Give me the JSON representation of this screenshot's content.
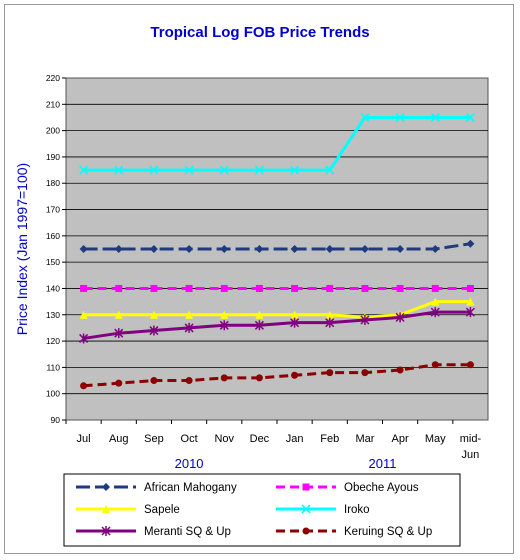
{
  "chart_data": {
    "type": "line",
    "title": "Tropical Log FOB Price Trends",
    "xlabel": "",
    "ylabel": "Price Index (Jan 1997=100)",
    "ylim": [
      90,
      220
    ],
    "yticks": [
      90,
      100,
      110,
      120,
      130,
      140,
      150,
      160,
      170,
      180,
      190,
      200,
      210,
      220
    ],
    "categories": [
      "Jul",
      "Aug",
      "Sep",
      "Oct",
      "Nov",
      "Dec",
      "Jan",
      "Feb",
      "Mar",
      "Apr",
      "May",
      "mid-Jun"
    ],
    "year_labels": [
      {
        "label": "2010",
        "center_index": 3
      },
      {
        "label": "2011",
        "center_index": 8.5
      }
    ],
    "grid": "horizontal",
    "legend_placement": "bottom",
    "series": [
      {
        "name": "African Mahogany",
        "color": "#1f3a80",
        "dash": "long-dash",
        "marker": "diamond",
        "values": [
          155,
          155,
          155,
          155,
          155,
          155,
          155,
          155,
          155,
          155,
          155,
          157
        ]
      },
      {
        "name": "Obeche Ayous",
        "color": "#ff00ff",
        "dash": "dash",
        "marker": "square",
        "values": [
          140,
          140,
          140,
          140,
          140,
          140,
          140,
          140,
          140,
          140,
          140,
          140
        ]
      },
      {
        "name": "Sapele",
        "color": "#ffff00",
        "dash": "solid",
        "marker": "triangle",
        "values": [
          130,
          130,
          130,
          130,
          130,
          130,
          130,
          130,
          129,
          130,
          135,
          135
        ]
      },
      {
        "name": "Iroko",
        "color": "#00ffff",
        "dash": "solid",
        "marker": "x",
        "values": [
          185,
          185,
          185,
          185,
          185,
          185,
          185,
          185,
          205,
          205,
          205,
          205
        ]
      },
      {
        "name": "Meranti SQ & Up",
        "color": "#800080",
        "dash": "solid",
        "marker": "star",
        "values": [
          121,
          123,
          124,
          125,
          126,
          126,
          127,
          127,
          128,
          129,
          131,
          131
        ]
      },
      {
        "name": "Keruing SQ & Up",
        "color": "#8b0000",
        "dash": "dash",
        "marker": "circle",
        "values": [
          103,
          104,
          105,
          105,
          106,
          106,
          107,
          108,
          108,
          109,
          111,
          111
        ]
      }
    ],
    "colors": {
      "plot_background": "#c0c0c0",
      "title": "#0000cc",
      "axis_label": "#0000cc",
      "year_label": "#0000cc"
    }
  }
}
